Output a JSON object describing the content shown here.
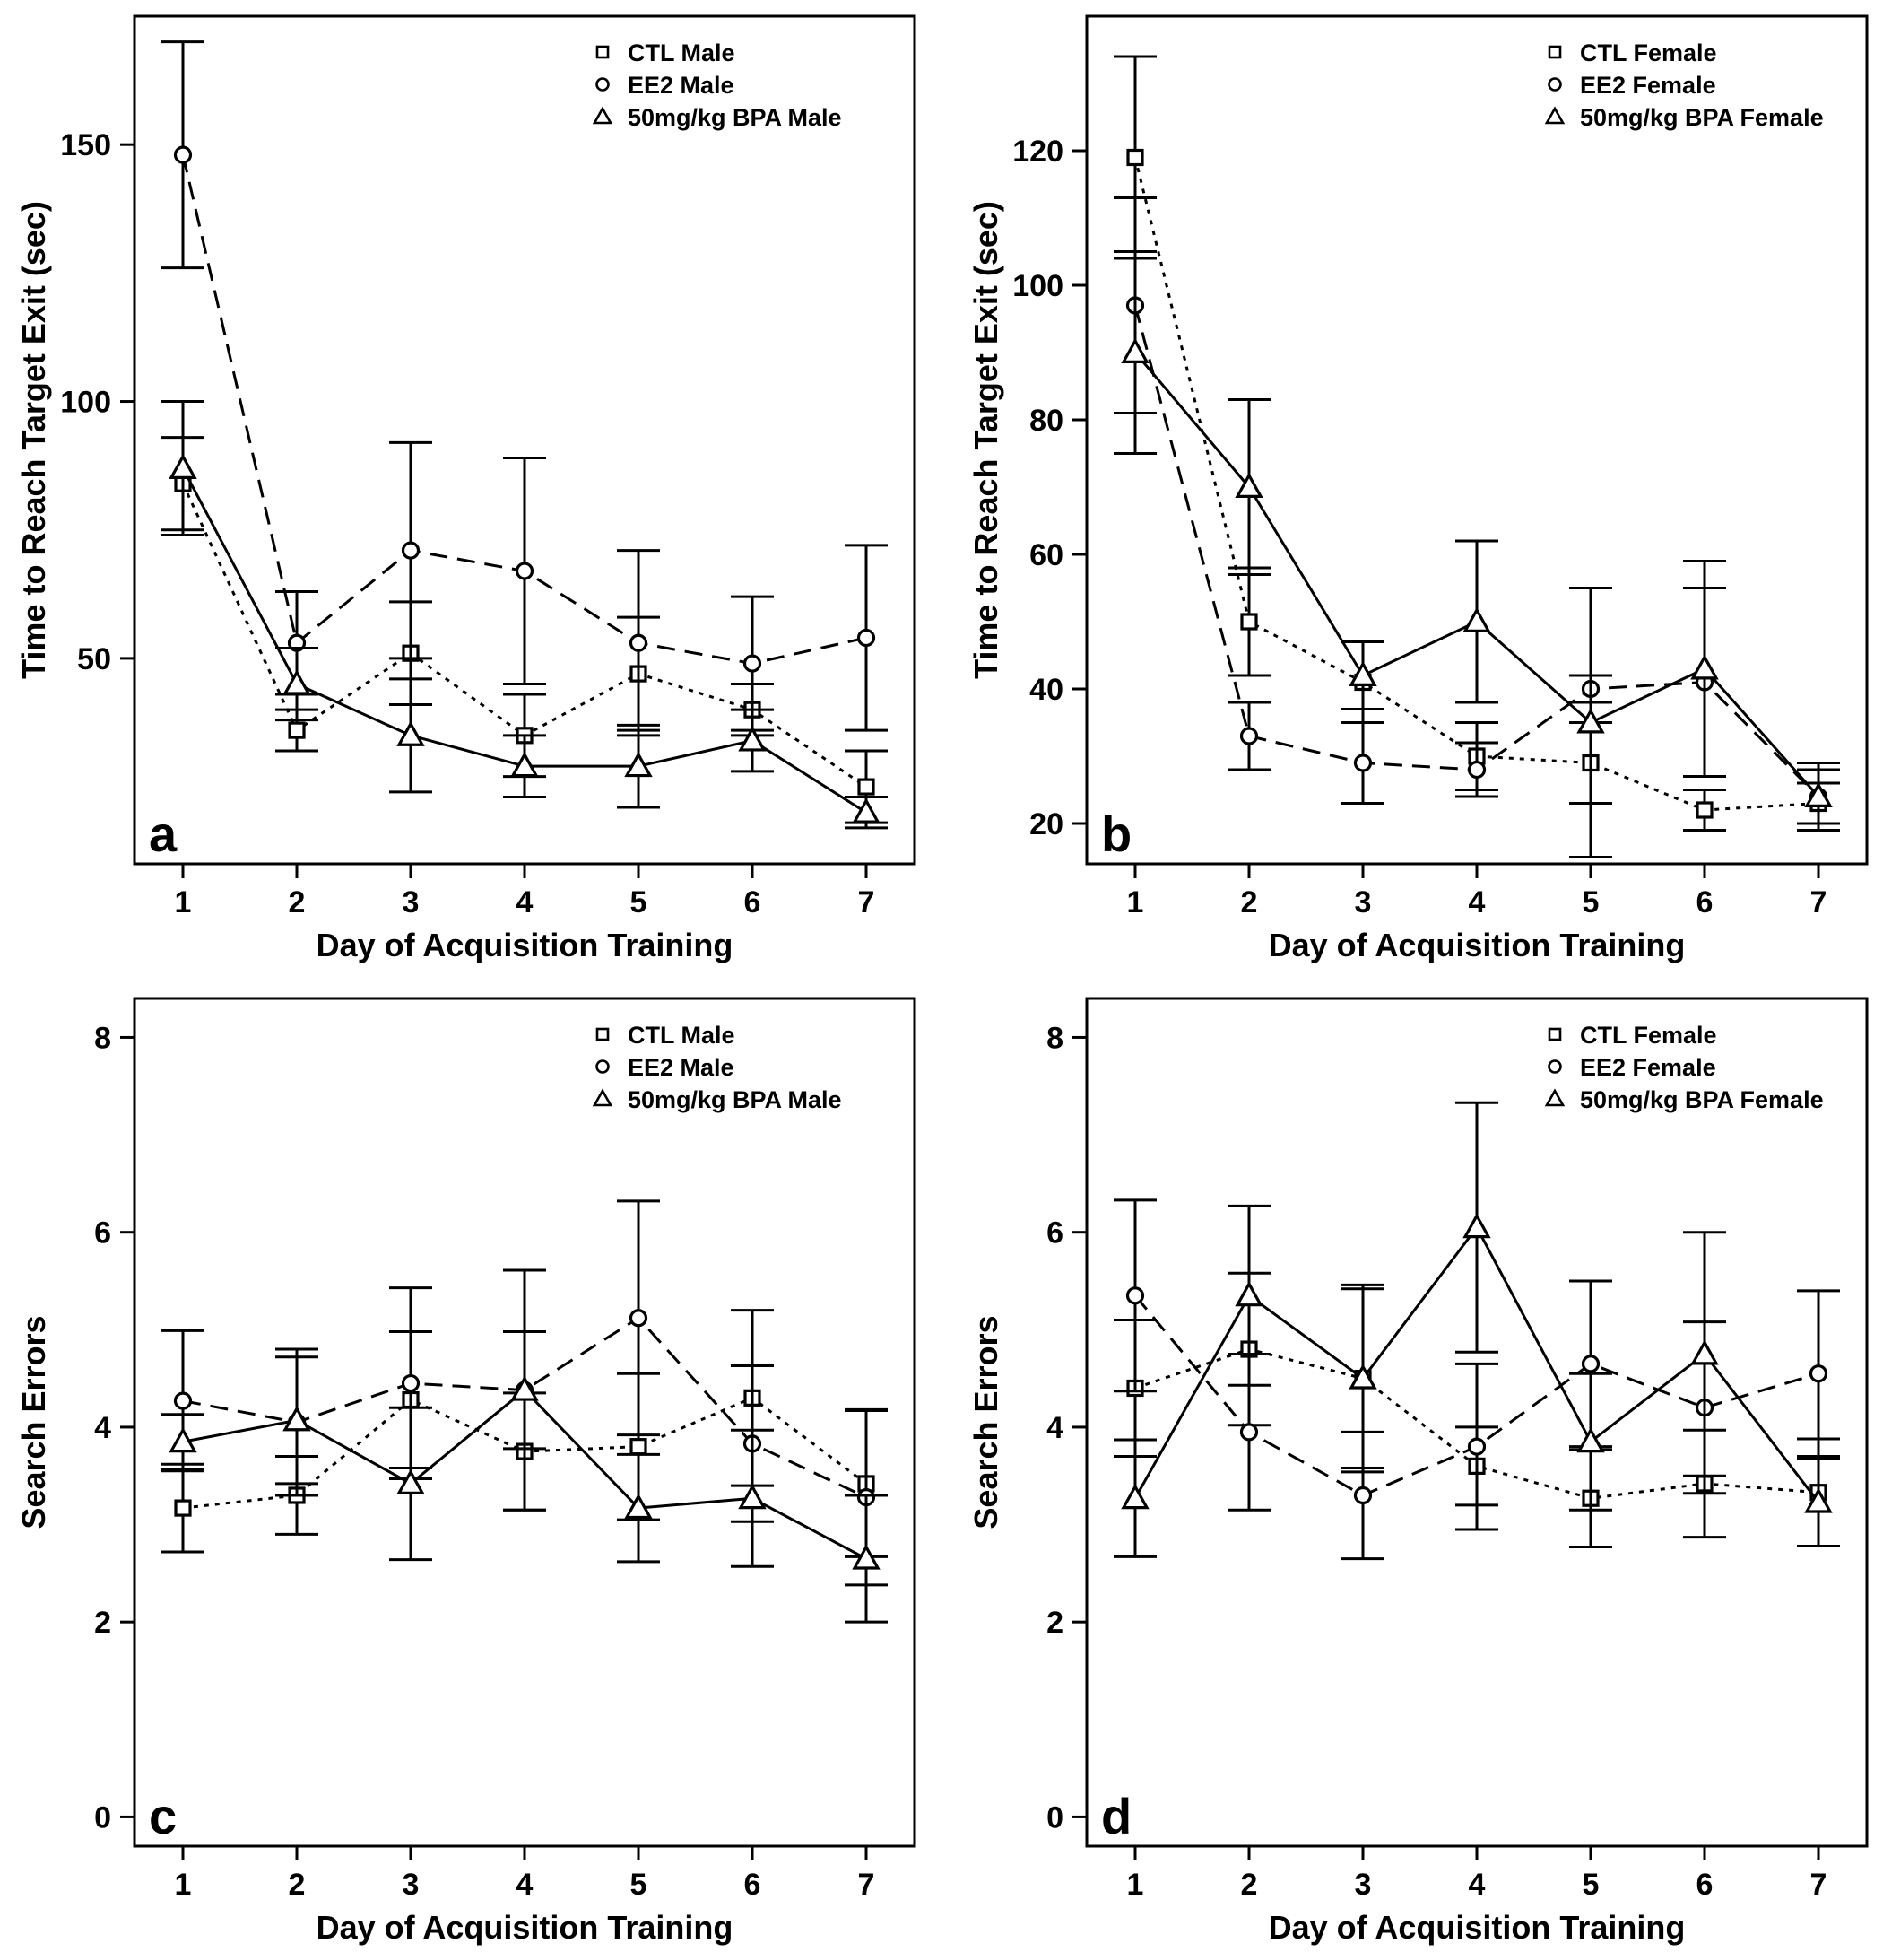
{
  "chart_data": [
    {
      "type": "line",
      "panel_label": "a",
      "xlabel": "Day of Acquisition Training",
      "ylabel": "Time to Reach Target Exit (sec)",
      "x": [
        1,
        2,
        3,
        4,
        5,
        6,
        7
      ],
      "xticks": [
        "1",
        "2",
        "3",
        "4",
        "5",
        "6",
        "7"
      ],
      "ylim": [
        10,
        175
      ],
      "yticks": [
        50,
        100,
        150
      ],
      "ytick_labels": [
        "50",
        "100",
        "150"
      ],
      "legend_position": "top-right",
      "series": [
        {
          "name": "CTL Male",
          "marker": "square",
          "dash": "dotted",
          "values": [
            84,
            36,
            51,
            35,
            47,
            40,
            25
          ],
          "errors": [
            9,
            4,
            10,
            8,
            11,
            5,
            7
          ]
        },
        {
          "name": "EE2 Male",
          "marker": "circle",
          "dash": "dashed",
          "values": [
            148,
            53,
            71,
            67,
            53,
            49,
            54
          ],
          "errors": [
            22,
            10,
            21,
            22,
            18,
            13,
            18
          ]
        },
        {
          "name": "50mg/kg BPA Male",
          "marker": "triangle",
          "dash": "solid",
          "values": [
            87,
            45,
            35,
            29,
            29,
            34,
            20
          ],
          "errors": [
            13,
            7,
            11,
            6,
            8,
            6,
            3
          ]
        }
      ]
    },
    {
      "type": "line",
      "panel_label": "b",
      "xlabel": "Day of Acquisition Training",
      "ylabel": "Time to Reach Target Exit (sec)",
      "x": [
        1,
        2,
        3,
        4,
        5,
        6,
        7
      ],
      "xticks": [
        "1",
        "2",
        "3",
        "4",
        "5",
        "6",
        "7"
      ],
      "ylim": [
        14,
        140
      ],
      "yticks": [
        20,
        40,
        60,
        80,
        100,
        120
      ],
      "ytick_labels": [
        "20",
        "40",
        "60",
        "80",
        "100",
        "120"
      ],
      "legend_position": "top-right",
      "series": [
        {
          "name": "CTL Female",
          "marker": "square",
          "dash": "dotted",
          "values": [
            119,
            50,
            41,
            30,
            29,
            22,
            23
          ],
          "errors": [
            15,
            8,
            6,
            5,
            6,
            3,
            3
          ]
        },
        {
          "name": "EE2 Female",
          "marker": "circle",
          "dash": "dashed",
          "values": [
            97,
            33,
            29,
            28,
            40,
            41,
            24
          ],
          "errors": [
            16,
            5,
            6,
            4,
            2,
            14,
            4
          ]
        },
        {
          "name": "50mg/kg BPA Female",
          "marker": "triangle",
          "dash": "solid",
          "values": [
            90,
            70,
            42,
            50,
            35,
            43,
            24
          ],
          "errors": [
            15,
            13,
            5,
            12,
            20,
            16,
            5
          ]
        }
      ]
    },
    {
      "type": "line",
      "panel_label": "c",
      "xlabel": "Day of Acquisition Training",
      "ylabel": "Search Errors",
      "x": [
        1,
        2,
        3,
        4,
        5,
        6,
        7
      ],
      "xticks": [
        "1",
        "2",
        "3",
        "4",
        "5",
        "6",
        "7"
      ],
      "ylim": [
        -0.3,
        8.4
      ],
      "yticks": [
        0,
        2,
        4,
        6,
        8
      ],
      "ytick_labels": [
        "0",
        "2",
        "4",
        "6",
        "8"
      ],
      "legend_position": "top-right",
      "series": [
        {
          "name": "CTL Male",
          "marker": "square",
          "dash": "dotted",
          "values": [
            3.17,
            3.3,
            4.28,
            3.75,
            3.8,
            4.3,
            3.42
          ],
          "errors": [
            0.45,
            0.4,
            0.7,
            0.6,
            0.75,
            0.9,
            0.75
          ]
        },
        {
          "name": "EE2 Male",
          "marker": "circle",
          "dash": "dashed",
          "values": [
            4.27,
            4.05,
            4.45,
            4.38,
            5.12,
            3.83,
            3.28
          ],
          "errors": [
            0.72,
            0.75,
            0.98,
            1.23,
            1.2,
            0.8,
            0.9
          ]
        },
        {
          "name": "50mg/kg BPA Male",
          "marker": "triangle",
          "dash": "solid",
          "values": [
            3.85,
            4.07,
            3.42,
            4.38,
            3.17,
            3.27,
            2.65
          ],
          "errors": [
            0.28,
            0.65,
            0.78,
            0.6,
            0.55,
            0.7,
            0.65
          ]
        }
      ]
    },
    {
      "type": "line",
      "panel_label": "d",
      "xlabel": "Day of Acquisition Training",
      "ylabel": "Search Errors",
      "x": [
        1,
        2,
        3,
        4,
        5,
        6,
        7
      ],
      "xticks": [
        "1",
        "2",
        "3",
        "4",
        "5",
        "6",
        "7"
      ],
      "ylim": [
        -0.3,
        8.4
      ],
      "yticks": [
        0,
        2,
        4,
        6,
        8
      ],
      "ytick_labels": [
        "0",
        "2",
        "4",
        "6",
        "8"
      ],
      "legend_position": "top-right",
      "series": [
        {
          "name": "CTL Female",
          "marker": "square",
          "dash": "dotted",
          "values": [
            4.4,
            4.8,
            4.5,
            3.6,
            3.27,
            3.42,
            3.33
          ],
          "errors": [
            0.7,
            0.78,
            0.96,
            0.4,
            0.5,
            0.55,
            0.55
          ]
        },
        {
          "name": "EE2 Female",
          "marker": "circle",
          "dash": "dashed",
          "values": [
            5.35,
            3.95,
            3.3,
            3.8,
            4.65,
            4.2,
            4.55
          ],
          "errors": [
            0.98,
            0.8,
            0.65,
            0.85,
            0.85,
            0.88,
            0.85
          ]
        },
        {
          "name": "50mg/kg BPA Female",
          "marker": "triangle",
          "dash": "solid",
          "values": [
            3.27,
            5.35,
            4.5,
            6.05,
            3.85,
            4.75,
            3.23
          ],
          "errors": [
            0.6,
            0.92,
            0.92,
            1.28,
            0.7,
            1.25,
            0.45
          ]
        }
      ]
    }
  ]
}
